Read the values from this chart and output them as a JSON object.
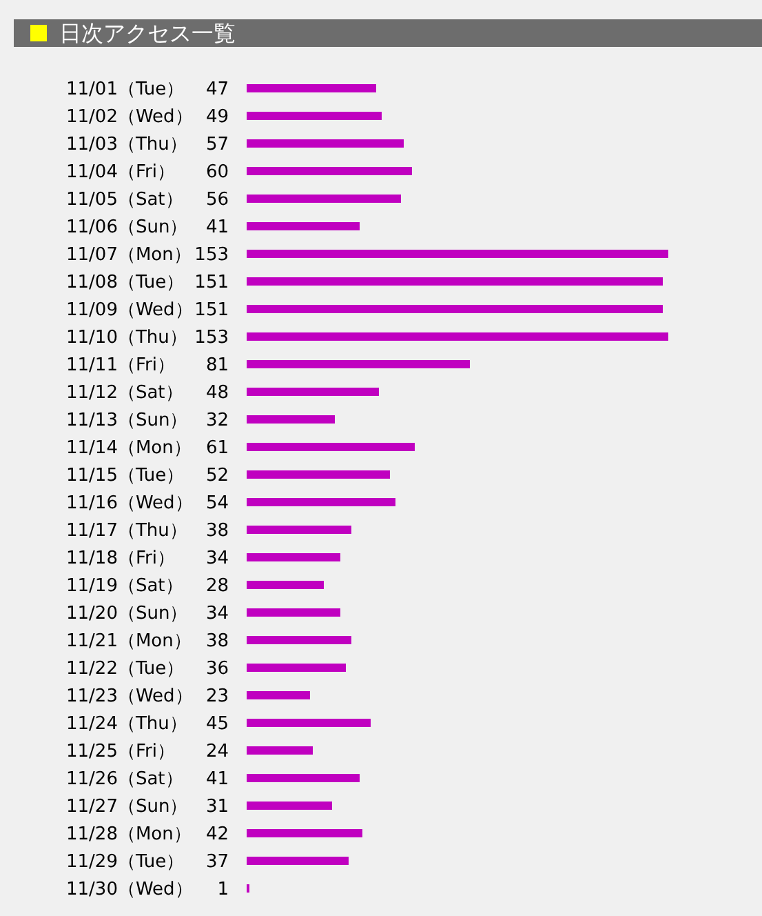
{
  "chart_data": {
    "type": "bar",
    "orientation": "horizontal",
    "title": "日次アクセス一覧",
    "categories": [
      "11/01（Tue）",
      "11/02（Wed）",
      "11/03（Thu）",
      "11/04（Fri）",
      "11/05（Sat）",
      "11/06（Sun）",
      "11/07（Mon）",
      "11/08（Tue）",
      "11/09（Wed）",
      "11/10（Thu）",
      "11/11（Fri）",
      "11/12（Sat）",
      "11/13（Sun）",
      "11/14（Mon）",
      "11/15（Tue）",
      "11/16（Wed）",
      "11/17（Thu）",
      "11/18（Fri）",
      "11/19（Sat）",
      "11/20（Sun）",
      "11/21（Mon）",
      "11/22（Tue）",
      "11/23（Wed）",
      "11/24（Thu）",
      "11/25（Fri）",
      "11/26（Sat）",
      "11/27（Sun）",
      "11/28（Mon）",
      "11/29（Tue）",
      "11/30（Wed）"
    ],
    "values": [
      47,
      49,
      57,
      60,
      56,
      41,
      153,
      151,
      151,
      153,
      81,
      48,
      32,
      61,
      52,
      54,
      38,
      34,
      28,
      34,
      38,
      36,
      23,
      45,
      24,
      41,
      31,
      42,
      37,
      1
    ],
    "color": "#c000c0",
    "data_labels": true
  }
}
